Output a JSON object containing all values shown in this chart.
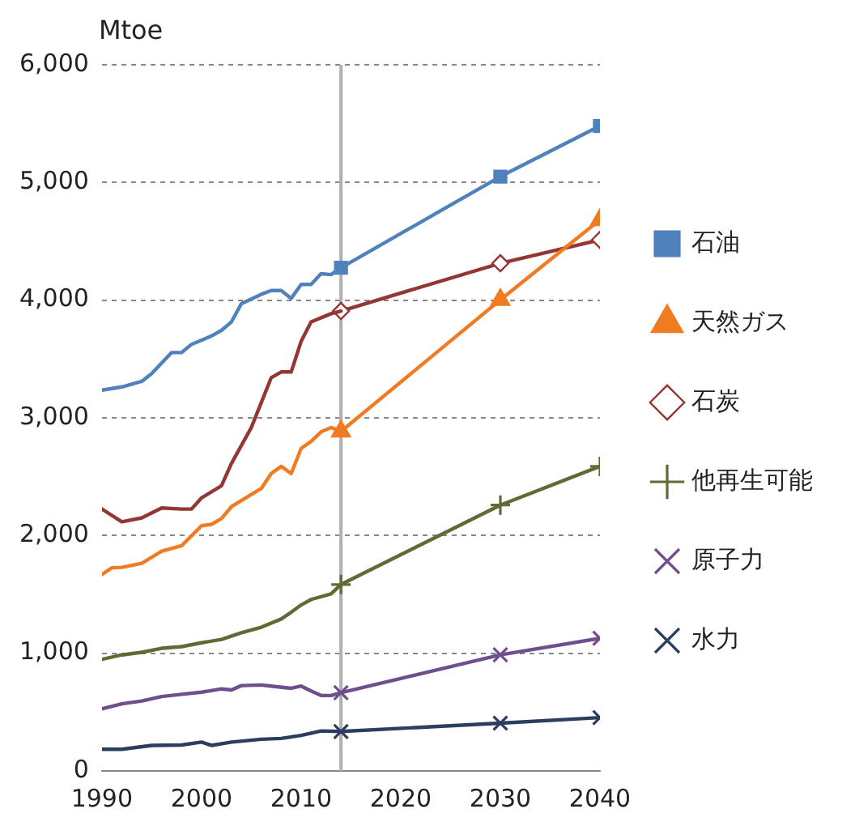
{
  "chart_data": {
    "type": "line",
    "ylabel": "Mtoe",
    "xlim": [
      1990,
      2040
    ],
    "xticks": [
      1990,
      2000,
      2010,
      2020,
      2030,
      2040
    ],
    "ylim": [
      0,
      6000
    ],
    "yticks": [
      0,
      {
        "value": 1000,
        "label": "1,000"
      },
      {
        "value": 2000,
        "label": "2,000"
      },
      {
        "value": 3000,
        "label": "3,000"
      },
      {
        "value": 4000,
        "label": "4,000"
      },
      {
        "value": 5000,
        "label": "5,000"
      },
      {
        "value": 6000,
        "label": "6,000"
      }
    ],
    "grid": "y",
    "legend": "right",
    "line_style": "solid",
    "ref_lines": [
      {
        "axis": "x",
        "value": 2014,
        "color": "#b0b0b0"
      }
    ],
    "series": [
      {
        "color": "#4f81bd",
        "marker": "none",
        "x": [
          1990,
          1992,
          1994,
          1995,
          1997,
          1998,
          1999,
          2001,
          2002,
          2003,
          2004,
          2006,
          2007,
          2008,
          2009,
          2010,
          2011,
          2012,
          2013,
          2014
        ],
        "values": [
          3235,
          3263,
          3310,
          3376,
          3555,
          3555,
          3625,
          3696,
          3743,
          3815,
          3970,
          4050,
          4082,
          4082,
          4015,
          4134,
          4134,
          4225,
          4217,
          4276
        ]
      },
      {
        "color": "#943634",
        "marker": "none",
        "x": [
          1990,
          1992,
          1994,
          1996,
          1998,
          1999,
          2000,
          2002,
          2003,
          2005,
          2006,
          2007,
          2008,
          2009,
          2010,
          2011,
          2013,
          2014
        ],
        "values": [
          2225,
          2117,
          2150,
          2235,
          2225,
          2225,
          2320,
          2423,
          2612,
          2918,
          3130,
          3342,
          3390,
          3390,
          3650,
          3815,
          3885,
          3908
        ]
      },
      {
        "color": "#f07b22",
        "marker": "none",
        "x": [
          1990,
          1991,
          1992,
          1994,
          1996,
          1998,
          2000,
          2001,
          2002,
          2003,
          2006,
          2007,
          2008,
          2009,
          2010,
          2011,
          2012,
          2013,
          2014
        ],
        "values": [
          1669,
          1726,
          1730,
          1764,
          1867,
          1914,
          2083,
          2095,
          2144,
          2245,
          2400,
          2527,
          2588,
          2527,
          2740,
          2800,
          2881,
          2918,
          2885
        ]
      },
      {
        "color": "#5f6b34",
        "marker": "none",
        "x": [
          1990,
          1992,
          1994,
          1996,
          1998,
          2000,
          2002,
          2004,
          2006,
          2008,
          2009,
          2010,
          2011,
          2013,
          2014
        ],
        "values": [
          948,
          986,
          1008,
          1042,
          1056,
          1089,
          1117,
          1174,
          1221,
          1291,
          1348,
          1410,
          1457,
          1504,
          1584
        ]
      },
      {
        "color": "#6f4e8c",
        "marker": "none",
        "x": [
          1990,
          1992,
          1994,
          1996,
          1998,
          2000,
          2002,
          2003,
          2004,
          2006,
          2007,
          2009,
          2010,
          2011,
          2012,
          2013,
          2014
        ],
        "values": [
          528,
          570,
          594,
          632,
          651,
          669,
          697,
          688,
          725,
          730,
          721,
          702,
          721,
          679,
          641,
          641,
          665
        ]
      },
      {
        "color": "#2c3e5f",
        "marker": "none",
        "x": [
          1990,
          1992,
          1995,
          1998,
          2000,
          2001,
          2003,
          2006,
          2008,
          2010,
          2012,
          2014
        ],
        "values": [
          184,
          184,
          217,
          220,
          245,
          217,
          245,
          269,
          276,
          302,
          340,
          335
        ]
      },
      {
        "name": "石油",
        "color": "#4f81bd",
        "marker": "square",
        "x": [
          2014,
          2030,
          2040
        ],
        "values": [
          4276,
          5050,
          5480
        ]
      },
      {
        "name": "天然ガス",
        "color": "#f07b22",
        "marker": "triangle",
        "x": [
          2014,
          2030,
          2040
        ],
        "values": [
          2885,
          4003,
          4682
        ]
      },
      {
        "name": "石炭",
        "color": "#943634",
        "marker": "diamond",
        "x": [
          2014,
          2030,
          2040
        ],
        "values": [
          3908,
          4314,
          4512
        ]
      },
      {
        "name": "他再生可能",
        "color": "#5f6b34",
        "marker": "cross",
        "x": [
          2014,
          2030,
          2040
        ],
        "values": [
          1584,
          2259,
          2588
        ]
      },
      {
        "name": "原子力",
        "color": "#6f4e8c",
        "marker": "x",
        "x": [
          2014,
          2030,
          2040
        ],
        "values": [
          665,
          986,
          1127
        ]
      },
      {
        "name": "水力",
        "color": "#2c3e5f",
        "marker": "x",
        "x": [
          2014,
          2030,
          2040
        ],
        "values": [
          335,
          406,
          453
        ]
      }
    ]
  }
}
